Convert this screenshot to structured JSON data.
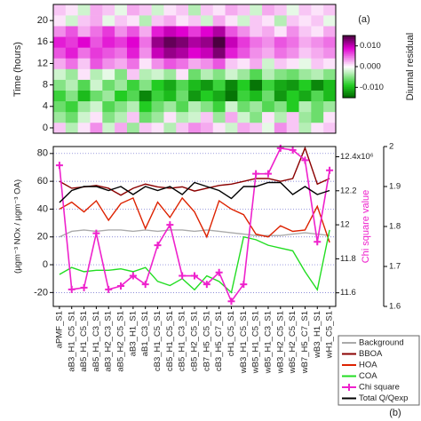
{
  "chart_data": [
    {
      "type": "heatmap",
      "ylabel": "Time (hours)",
      "annotation": "(a)",
      "colorbar_label": "Diurnal residual",
      "y": [
        0,
        2,
        4,
        6,
        8,
        10,
        12,
        14,
        16,
        18,
        20,
        22
      ],
      "ylim": [
        -1,
        23
      ],
      "yticks": [
        0,
        4,
        8,
        12,
        16,
        20
      ],
      "zlim": [
        -0.015,
        0.015
      ],
      "zticks": [
        {
          "value": 0.01,
          "label": "0.010"
        },
        {
          "value": 0,
          "label": "0.000"
        },
        {
          "value": -0.01,
          "label": "-0.010"
        }
      ],
      "colors": {
        "negative": "#006400",
        "mid": "#ffffff",
        "positive": "#4b0040"
      },
      "values": [
        [
          0.002,
          -0.003,
          0.001,
          0.004,
          -0.002,
          0.003,
          -0.004,
          0.002,
          0.001,
          -0.003,
          0.002,
          0.004,
          0.003,
          0.001,
          -0.002,
          0.003,
          0.002,
          -0.001,
          0.004,
          0.002,
          -0.003,
          0.001,
          0.002
        ],
        [
          -0.004,
          -0.006,
          -0.002,
          0.001,
          -0.005,
          -0.003,
          0.002,
          -0.006,
          -0.004,
          0.001,
          -0.003,
          -0.002,
          0.002,
          -0.004,
          0.003,
          -0.002,
          -0.005,
          0.001,
          -0.003,
          0.002,
          -0.004,
          -0.006,
          0.001
        ],
        [
          -0.006,
          -0.008,
          -0.004,
          -0.002,
          -0.007,
          -0.005,
          -0.003,
          -0.009,
          -0.006,
          -0.004,
          -0.007,
          -0.003,
          -0.005,
          -0.008,
          -0.002,
          -0.006,
          -0.004,
          -0.007,
          -0.005,
          -0.009,
          -0.003,
          -0.006,
          -0.004
        ],
        [
          -0.008,
          -0.005,
          -0.01,
          -0.006,
          -0.004,
          -0.009,
          -0.007,
          -0.013,
          -0.008,
          -0.01,
          -0.006,
          -0.012,
          -0.009,
          -0.011,
          -0.014,
          -0.008,
          -0.01,
          -0.006,
          -0.012,
          -0.009,
          -0.011,
          -0.007,
          -0.01
        ],
        [
          -0.005,
          -0.003,
          -0.007,
          -0.002,
          -0.006,
          -0.004,
          -0.008,
          -0.005,
          -0.009,
          -0.011,
          -0.007,
          -0.01,
          -0.012,
          -0.008,
          -0.013,
          -0.009,
          -0.014,
          -0.008,
          -0.011,
          -0.012,
          -0.009,
          -0.013,
          -0.01
        ],
        [
          -0.002,
          -0.004,
          0.001,
          -0.003,
          -0.001,
          -0.005,
          0.002,
          -0.003,
          -0.002,
          -0.004,
          0.001,
          -0.006,
          -0.003,
          -0.005,
          -0.002,
          -0.004,
          -0.007,
          -0.003,
          -0.005,
          -0.006,
          -0.004,
          -0.003,
          -0.005
        ],
        [
          0.003,
          0.005,
          0.002,
          0.006,
          0.004,
          0.003,
          0.005,
          0.001,
          0.004,
          0.006,
          0.005,
          0.003,
          0.004,
          0.006,
          0.002,
          0.001,
          0.003,
          -0.002,
          0.002,
          0.001,
          -0.001,
          0.002,
          0.001
        ],
        [
          0.006,
          0.008,
          0.005,
          0.007,
          0.006,
          0.005,
          0.008,
          0.004,
          0.01,
          0.012,
          0.011,
          0.009,
          0.01,
          0.013,
          0.008,
          0.006,
          0.004,
          0.003,
          0.005,
          0.004,
          0.002,
          0.003,
          0.004
        ],
        [
          0.008,
          0.007,
          0.009,
          0.006,
          0.008,
          0.007,
          0.009,
          0.005,
          0.012,
          0.014,
          0.013,
          0.011,
          0.012,
          0.015,
          0.01,
          0.007,
          0.005,
          0.004,
          0.006,
          0.005,
          0.003,
          0.004,
          0.005
        ],
        [
          0.004,
          0.006,
          0.003,
          0.005,
          0.007,
          0.004,
          0.006,
          0.003,
          0.008,
          0.01,
          0.009,
          0.007,
          0.009,
          0.011,
          0.006,
          0.004,
          0.002,
          0.003,
          0.001,
          0.004,
          0.002,
          0.001,
          0.003
        ],
        [
          0.001,
          -0.002,
          0.002,
          0.003,
          -0.001,
          0.002,
          0.001,
          -0.003,
          0.002,
          0.003,
          0.001,
          0.002,
          -0.002,
          0.003,
          0.001,
          -0.002,
          0.002,
          0.001,
          -0.003,
          0.002,
          0.001,
          0.002,
          -0.001
        ],
        [
          0.002,
          0.001,
          -0.002,
          0.003,
          0.002,
          -0.001,
          0.003,
          0.002,
          -0.002,
          0.001,
          0.002,
          -0.003,
          0.002,
          0.001,
          0.003,
          0.002,
          -0.002,
          0.003,
          0.002,
          -0.001,
          0.002,
          0.001,
          0.002
        ]
      ]
    },
    {
      "type": "line",
      "ylabel": "(µgm⁻³ NOx / µgm⁻³ OA)",
      "y2label": "Chi square value",
      "annotation": "(b)",
      "categories": [
        "aPMF_S1",
        "aB3_H1_C5_S1",
        "aB5_H1_C5_S1",
        "aB5_H1_C3_S1",
        "aB3_H2_C3_S1",
        "aB5_H2_C5_S1",
        "aB3_H1_S1",
        "aB1_C3_S1",
        "cB3_H1_C5_S1",
        "cB5_H1_C5_S1",
        "cB5_H1_C3_S1",
        "cB5_H2_C5_S1",
        "cB7_H5_C5_S1",
        "cB3_H5_C7_S1",
        "cH1_C5_S1",
        "wB3_H1_C5_S1",
        "wB5_H1_C5_S1",
        "wB5_H1_C3_S1",
        "wB3_H2_C5_S1",
        "wB5_H2_C5_S1",
        "wB7_H5_C7_S1",
        "wB3_H1_S1",
        "wH1_C5_S1"
      ],
      "ylim": [
        -30,
        85
      ],
      "yticks": [
        -20,
        0,
        20,
        40,
        60,
        80
      ],
      "grid": true,
      "y2lim": [
        11.52,
        12.46
      ],
      "y2ticks": [
        11.6,
        11.8,
        12.0,
        12.2,
        {
          "value": 12.4,
          "label": "12.4x10⁶"
        }
      ],
      "y3lim": [
        1.6,
        2.0
      ],
      "y3ticks": [
        1.6,
        1.7,
        1.8,
        1.9,
        2.0
      ],
      "series": [
        {
          "name": "Background",
          "color": "#aaaaaa",
          "values": [
            20,
            24,
            25,
            24,
            25,
            25,
            24,
            25,
            24,
            25,
            25,
            24,
            25,
            24,
            23,
            22,
            21,
            21,
            21,
            22,
            23,
            22,
            21
          ]
        },
        {
          "name": "BBOA",
          "color": "#8b0000",
          "values": [
            60,
            55,
            56,
            57,
            55,
            50,
            55,
            58,
            56,
            55,
            56,
            53,
            55,
            57,
            58,
            60,
            62,
            62,
            60,
            62,
            84,
            58,
            62
          ]
        },
        {
          "name": "HOA",
          "color": "#dd2200",
          "values": [
            40,
            45,
            38,
            46,
            32,
            44,
            48,
            26,
            45,
            34,
            48,
            38,
            20,
            46,
            40,
            36,
            22,
            20,
            28,
            24,
            25,
            42,
            16
          ]
        },
        {
          "name": "COA",
          "color": "#22dd22",
          "values": [
            -7,
            -2,
            -5,
            -4,
            -4,
            -3,
            -5,
            -2,
            -12,
            -15,
            -10,
            -18,
            -8,
            -12,
            -20,
            20,
            18,
            14,
            12,
            10,
            -5,
            -18,
            25
          ]
        },
        {
          "name": "Chi square",
          "color": "#ee22cc",
          "axis": "y2",
          "marker": "+",
          "values": [
            12.35,
            11.62,
            11.63,
            11.95,
            11.62,
            11.64,
            11.7,
            11.65,
            11.88,
            12.0,
            11.7,
            11.7,
            11.65,
            11.72,
            11.55,
            11.65,
            12.3,
            12.3,
            12.45,
            12.44,
            12.38,
            11.9,
            12.32
          ]
        },
        {
          "name": "Total Q/Qexp",
          "color": "#000000",
          "axis": "y3",
          "values": [
            1.86,
            1.89,
            1.9,
            1.9,
            1.89,
            1.9,
            1.88,
            1.9,
            1.89,
            1.9,
            1.88,
            1.91,
            1.9,
            1.89,
            1.87,
            1.9,
            1.9,
            1.91,
            1.91,
            1.88,
            1.9,
            1.88,
            1.89
          ]
        }
      ]
    }
  ]
}
